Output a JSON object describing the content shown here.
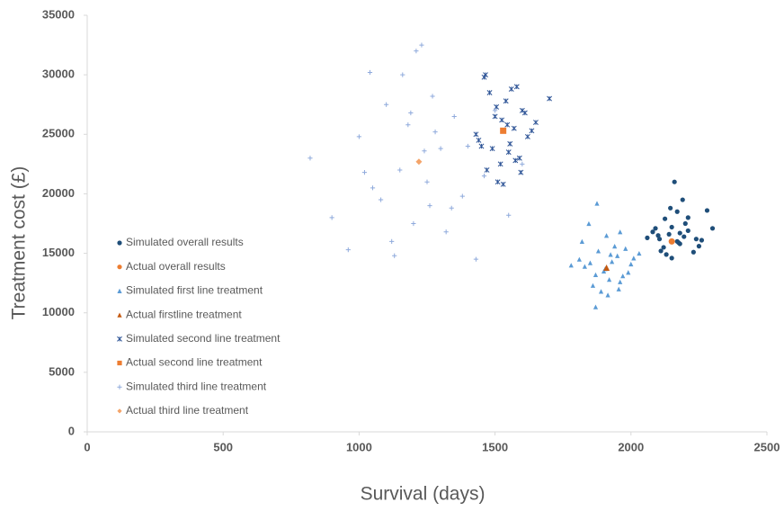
{
  "chart_data": {
    "type": "scatter",
    "xlabel": "Survival (days)",
    "ylabel": "Treatment cost (£)",
    "xlim": [
      0,
      2500
    ],
    "xticks": [
      0,
      500,
      1000,
      1500,
      2000,
      2500
    ],
    "ylim": [
      0,
      35000
    ],
    "yticks": [
      0,
      5000,
      10000,
      15000,
      20000,
      25000,
      30000,
      35000
    ],
    "grid": false,
    "legend": "left",
    "series": [
      {
        "name": "Simulated overall results",
        "color": "#1f4e79",
        "marker": "circle",
        "x": [
          2100,
          2150,
          2180,
          2210,
          2120,
          2240,
          2080,
          2170,
          2130,
          2200,
          2160,
          2260,
          2110,
          2190,
          2140,
          2230,
          2090,
          2170,
          2210,
          2300,
          2060,
          2150,
          2180,
          2125,
          2250,
          2195,
          2145,
          2175,
          2280,
          2105
        ],
        "y": [
          16500,
          17200,
          15800,
          16900,
          15500,
          16200,
          16800,
          18500,
          14900,
          17500,
          21000,
          16100,
          15200,
          19500,
          16600,
          15100,
          17100,
          16000,
          18000,
          17100,
          16300,
          14600,
          16700,
          17900,
          15600,
          16400,
          18800,
          15900,
          18600,
          16200
        ]
      },
      {
        "name": "Actual overall results",
        "color": "#ed7d31",
        "marker": "circle",
        "x": [
          2150
        ],
        "y": [
          16000
        ]
      },
      {
        "name": "Simulated first line treatment",
        "color": "#5b9bd5",
        "marker": "triangle",
        "x": [
          1850,
          1900,
          1950,
          1880,
          1920,
          2000,
          1830,
          1970,
          1910,
          1860,
          1940,
          1990,
          1810,
          1890,
          2030,
          1870,
          1930,
          1960,
          1820,
          1980,
          1905,
          1845,
          1955,
          1875,
          1925,
          1870,
          1780,
          2010,
          1915,
          1960
        ],
        "y": [
          14200,
          13500,
          14800,
          15200,
          12800,
          14100,
          13900,
          13100,
          16500,
          12300,
          15600,
          13400,
          14500,
          11800,
          15000,
          10500,
          14300,
          12600,
          16000,
          15400,
          13700,
          17500,
          12000,
          19200,
          14900,
          13200,
          14000,
          14600,
          11500,
          16800
        ]
      },
      {
        "name": "Actual firstline treatment",
        "color": "#c55a11",
        "marker": "triangle",
        "x": [
          1910
        ],
        "y": [
          13800
        ]
      },
      {
        "name": "Simulated second line treatment",
        "color": "#2f5597",
        "marker": "star",
        "x": [
          1450,
          1500,
          1550,
          1600,
          1480,
          1520,
          1570,
          1620,
          1460,
          1510,
          1540,
          1590,
          1650,
          1430,
          1470,
          1560,
          1610,
          1490,
          1530,
          1580,
          1700,
          1440,
          1525,
          1575,
          1505,
          1555,
          1635,
          1465,
          1595,
          1545
        ],
        "y": [
          24000,
          26500,
          23500,
          27000,
          28500,
          22500,
          25500,
          24800,
          29800,
          21000,
          27800,
          23000,
          26000,
          25000,
          22000,
          28800,
          26800,
          23800,
          20800,
          29000,
          28000,
          24500,
          26200,
          22800,
          27300,
          24200,
          25300,
          30000,
          21800,
          25800
        ]
      },
      {
        "name": "Actual second line treatment",
        "color": "#ed7d31",
        "marker": "square",
        "x": [
          1530
        ],
        "y": [
          25300
        ]
      },
      {
        "name": "Simulated third line treatment",
        "color": "#8faadc",
        "marker": "plus",
        "x": [
          820,
          900,
          960,
          1000,
          1040,
          1080,
          1100,
          1130,
          1150,
          1180,
          1200,
          1230,
          1250,
          1270,
          1300,
          1320,
          1350,
          1380,
          1400,
          1430,
          1460,
          1500,
          1550,
          1600,
          1050,
          1120,
          1160,
          1240,
          1280,
          1340,
          1020,
          1210,
          1260,
          1190
        ],
        "y": [
          23000,
          18000,
          15300,
          24800,
          30200,
          19500,
          27500,
          14800,
          22000,
          25800,
          17500,
          32500,
          21000,
          28200,
          23800,
          16800,
          26500,
          19800,
          24000,
          14500,
          21500,
          27000,
          18200,
          22500,
          20500,
          16000,
          30000,
          23600,
          25200,
          18800,
          21800,
          32000,
          19000,
          26800
        ]
      },
      {
        "name": "Actual third line treatment",
        "color": "#f4a46a",
        "marker": "diamond",
        "x": [
          1220
        ],
        "y": [
          22700
        ]
      }
    ]
  }
}
